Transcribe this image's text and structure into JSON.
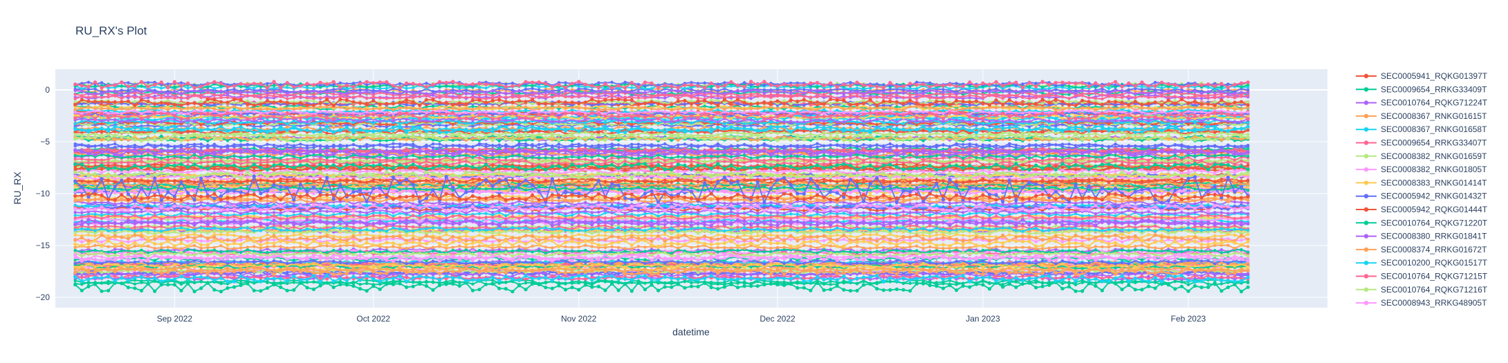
{
  "chart_data": {
    "type": "line",
    "title": "RU_RX's Plot",
    "xlabel": "datetime",
    "ylabel": "RU_RX",
    "x_range": [
      "2022-08-14",
      "2023-02-22"
    ],
    "x_data_range": [
      "2022-08-17",
      "2023-02-10"
    ],
    "ylim": [
      -21,
      2
    ],
    "grid": true,
    "legend": "right",
    "background": "#e5ecf6",
    "x_ticks": [
      {
        "date": "2022-09-01",
        "label": "Sep 2022"
      },
      {
        "date": "2022-10-01",
        "label": "Oct 2022"
      },
      {
        "date": "2022-11-01",
        "label": "Nov 2022"
      },
      {
        "date": "2022-12-01",
        "label": "Dec 2022"
      },
      {
        "date": "2023-01-01",
        "label": "Jan 2023"
      },
      {
        "date": "2023-02-01",
        "label": "Feb 2023"
      }
    ],
    "y_ticks": [
      {
        "value": 0,
        "label": "0"
      },
      {
        "value": -5,
        "label": "−5"
      },
      {
        "value": -10,
        "label": "−10"
      },
      {
        "value": -15,
        "label": "−15"
      },
      {
        "value": -20,
        "label": "−20"
      }
    ],
    "palette": [
      "#636efa",
      "#EF553B",
      "#00cc96",
      "#ab63fa",
      "#FFA15A",
      "#19d3f3",
      "#FF6692",
      "#B6E880",
      "#FF97FF",
      "#FECB52"
    ],
    "series": [
      {
        "name": "SEC0005941_RQKG01397T",
        "color": "#EF553B",
        "level": -1.2
      },
      {
        "name": "SEC0009654_RRKG33409T",
        "color": "#00cc96",
        "level": -19.0
      },
      {
        "name": "SEC0010764_RQKG71224T",
        "color": "#ab63fa",
        "level": -12.8
      },
      {
        "name": "SEC0008367_RNKG01615T",
        "color": "#FFA15A",
        "level": -14.3
      },
      {
        "name": "SEC0008367_RNKG01658T",
        "color": "#19d3f3",
        "level": -3.8
      },
      {
        "name": "SEC0009654_RRKG33407T",
        "color": "#FF6692",
        "level": 0.5
      },
      {
        "name": "SEC0008382_RNKG01659T",
        "color": "#B6E880",
        "level": -8.2
      },
      {
        "name": "SEC0008382_RNKG01805T",
        "color": "#FF97FF",
        "level": -16.2
      },
      {
        "name": "SEC0008383_RNKG01414T",
        "color": "#FECB52",
        "level": -14.8
      },
      {
        "name": "SEC0005942_RNKG01432T",
        "color": "#636efa",
        "level": -9.6
      },
      {
        "name": "SEC0005942_RQKG01444T",
        "color": "#EF553B",
        "level": -10.3
      },
      {
        "name": "SEC0010764_RQKG71220T",
        "color": "#00cc96",
        "level": -7.4
      },
      {
        "name": "SEC0008380_RRKG01841T",
        "color": "#ab63fa",
        "level": -6.0
      },
      {
        "name": "SEC0008374_RRKG01672T",
        "color": "#FFA15A",
        "level": -17.5
      },
      {
        "name": "SEC0010200_RQKG01517T",
        "color": "#19d3f3",
        "level": -18.2
      },
      {
        "name": "SEC0010764_RQKG71215T",
        "color": "#FF6692",
        "level": -2.5
      },
      {
        "name": "SEC0010764_RQKG71216T",
        "color": "#B6E880",
        "level": -4.6
      },
      {
        "name": "SEC0008943_RRKG48905T",
        "color": "#FF97FF",
        "level": -11.4
      }
    ]
  }
}
